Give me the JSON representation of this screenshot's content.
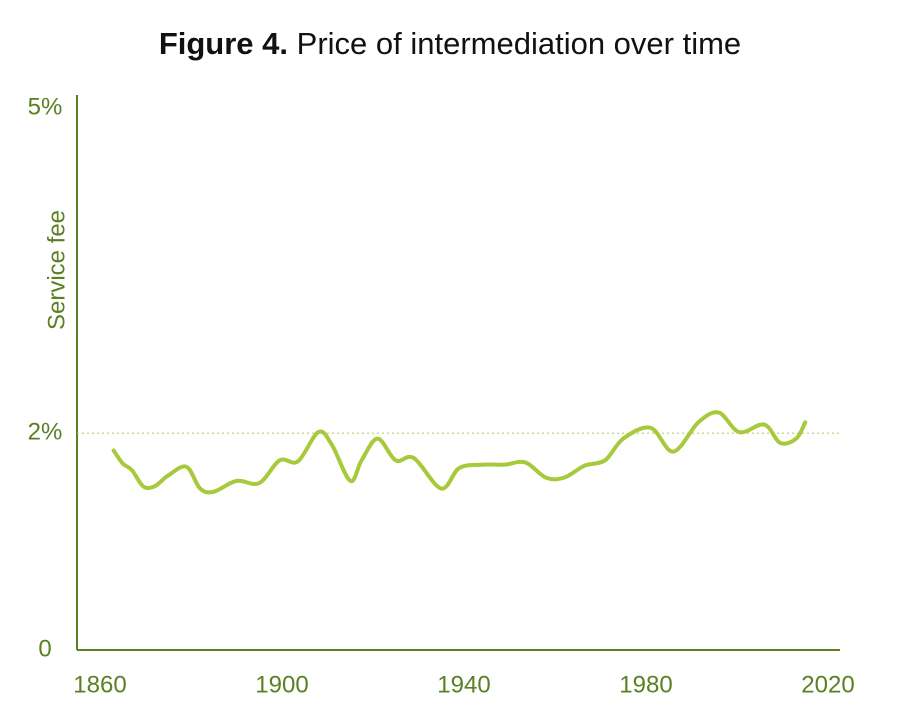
{
  "chart_data": {
    "type": "line",
    "figure_label": "Figure 4.",
    "title": "Price of intermediation over time",
    "y_label": "Service fee",
    "xlim": [
      1860,
      2020
    ],
    "xticks": [
      1860,
      1900,
      1940,
      1980,
      2020
    ],
    "ylim": [
      0,
      5
    ],
    "yticks": [
      0,
      {
        "value": 2,
        "label": "2%"
      },
      {
        "value": 5,
        "label": "5%"
      }
    ],
    "reference_line": 2,
    "series": [
      {
        "color": "#a7c93c",
        "x": [
          1863,
          1865,
          1867,
          1869.5,
          1872,
          1875,
          1879,
          1882,
          1885,
          1890,
          1895,
          1899.5,
          1903.5,
          1908,
          1911,
          1915,
          1917.5,
          1921,
          1925,
          1929,
          1935,
          1939,
          1944.5,
          1949,
          1953.5,
          1958,
          1962,
          1966.5,
          1971,
          1975,
          1981,
          1986,
          1991.5,
          1996,
          2000.5,
          2006,
          2009.5,
          2013,
          2015
        ],
        "values": [
          1.84,
          1.72,
          1.66,
          1.51,
          1.51,
          1.61,
          1.69,
          1.49,
          1.46,
          1.56,
          1.54,
          1.75,
          1.74,
          2.01,
          1.89,
          1.56,
          1.75,
          1.95,
          1.75,
          1.77,
          1.49,
          1.68,
          1.71,
          1.71,
          1.73,
          1.59,
          1.59,
          1.7,
          1.75,
          1.95,
          2.05,
          1.83,
          2.1,
          2.19,
          2.01,
          2.08,
          1.91,
          1.95,
          2.1
        ]
      }
    ]
  }
}
